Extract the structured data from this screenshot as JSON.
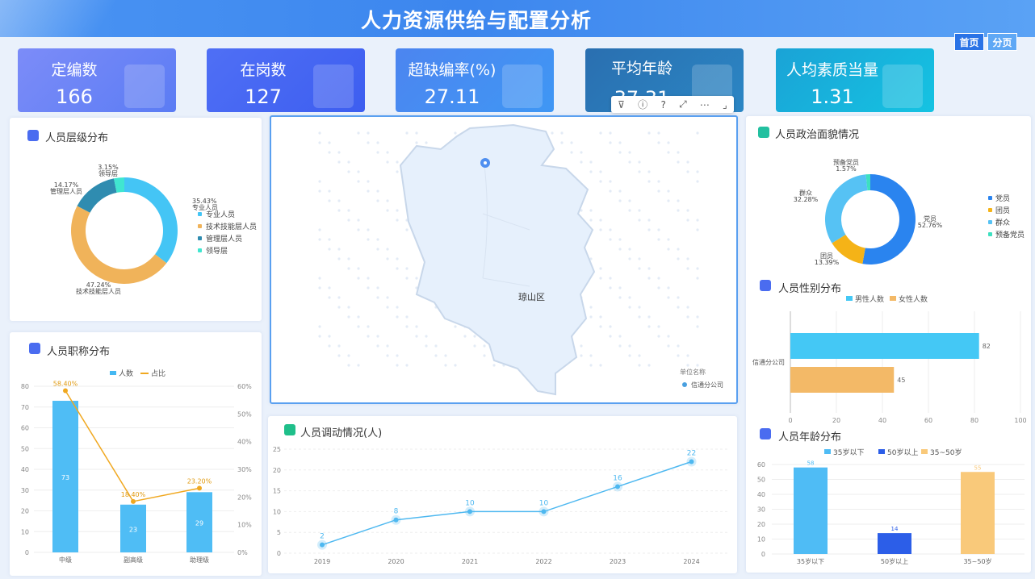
{
  "header": {
    "title": "人力资源供给与配置分析"
  },
  "nav": {
    "home": "首页",
    "sub": "分页"
  },
  "kpis": [
    {
      "label": "定编数",
      "value": "166",
      "color1": "#7c8cf8",
      "color2": "#5b7cf4"
    },
    {
      "label": "在岗数",
      "value": "127",
      "color1": "#4f6ff5",
      "color2": "#3d5ef0"
    },
    {
      "label": "超缺编率(%)",
      "value": "27.11",
      "color1": "#4c85f0",
      "color2": "#3f97f4"
    },
    {
      "label": "平均年龄",
      "value": "37.31",
      "color1": "#2a6fb0",
      "color2": "#2b86c4"
    },
    {
      "label": "人均素质当量",
      "value": "1.31",
      "color1": "#1aa3d6",
      "color2": "#15c3e2"
    }
  ],
  "toolbar": {
    "icons": [
      "filter-icon",
      "info-icon",
      "help-icon",
      "expand-icon",
      "more-icon",
      "corner-icon"
    ]
  },
  "level": {
    "title": "人员层级分布",
    "legend": [
      "专业人员",
      "技术技能层人员",
      "管理层人员",
      "领导层"
    ],
    "colors": [
      "#44c5f5",
      "#f0b35a",
      "#2f8cb0",
      "#40e6d0"
    ],
    "values": [
      35.43,
      47.24,
      14.17,
      3.15
    ],
    "labels": [
      "35.43%\n专业人员",
      "47.24%\n技术技能层人员",
      "14.17%\n管理层人员",
      "3.15%\n领导层"
    ]
  },
  "title_dist": {
    "title": "人员职称分布",
    "legend": [
      "人数",
      "占比"
    ]
  },
  "map": {
    "region": "琼山区",
    "legend_title": "单位名称",
    "legend_item": "信通分公司"
  },
  "transfer": {
    "title": "人员调动情况(人)"
  },
  "political": {
    "title": "人员政治面貌情况",
    "legend": [
      "党员",
      "团员",
      "群众",
      "预备党员"
    ],
    "colors": [
      "#2a84ef",
      "#f5b317",
      "#56c2f4",
      "#3de0c0"
    ],
    "values": [
      52.76,
      13.39,
      32.28,
      1.57
    ],
    "labels": [
      "党员\n52.76%",
      "团员\n13.39%",
      "群众\n32.28%",
      "预备党员\n1.57%"
    ]
  },
  "gender": {
    "title": "人员性别分布",
    "legend": [
      "男性人数",
      "女性人数"
    ],
    "category": "信通分公司",
    "values": [
      82,
      45
    ],
    "colors": [
      "#44c8f5",
      "#f3b967"
    ]
  },
  "age": {
    "title": "人员年龄分布",
    "legend": [
      "35岁以下",
      "50岁以上",
      "35~50岁"
    ]
  },
  "chart_data": [
    {
      "type": "pie",
      "title": "人员层级分布",
      "categories": [
        "专业人员",
        "技术技能层人员",
        "管理层人员",
        "领导层"
      ],
      "values": [
        35.43,
        47.24,
        14.17,
        3.15
      ]
    },
    {
      "type": "bar",
      "title": "人员职称分布",
      "categories": [
        "中级",
        "副高级",
        "助理级"
      ],
      "series": [
        {
          "name": "人数",
          "type": "bar",
          "values": [
            73,
            23,
            29
          ]
        },
        {
          "name": "占比",
          "type": "line",
          "values": [
            58.4,
            18.4,
            23.2
          ]
        }
      ],
      "ylim": [
        0,
        80
      ],
      "y2lim": [
        0,
        60
      ]
    },
    {
      "type": "line",
      "title": "人员调动情况(人)",
      "x": [
        "2019",
        "2020",
        "2021",
        "2022",
        "2023",
        "2024"
      ],
      "values": [
        2,
        8,
        10,
        10,
        16,
        22
      ],
      "ylim": [
        0,
        25
      ]
    },
    {
      "type": "pie",
      "title": "人员政治面貌情况",
      "categories": [
        "党员",
        "团员",
        "群众",
        "预备党员"
      ],
      "values": [
        52.76,
        13.39,
        32.28,
        1.57
      ]
    },
    {
      "type": "bar",
      "title": "人员性别分布",
      "categories": [
        "信通分公司"
      ],
      "series": [
        {
          "name": "男性人数",
          "values": [
            82
          ]
        },
        {
          "name": "女性人数",
          "values": [
            45
          ]
        }
      ],
      "xlim": [
        0,
        100
      ]
    },
    {
      "type": "bar",
      "title": "人员年龄分布",
      "categories": [
        "35岁以下",
        "50岁以上",
        "35~50岁"
      ],
      "values": [
        58,
        14,
        55
      ],
      "ylim": [
        0,
        60
      ]
    }
  ]
}
